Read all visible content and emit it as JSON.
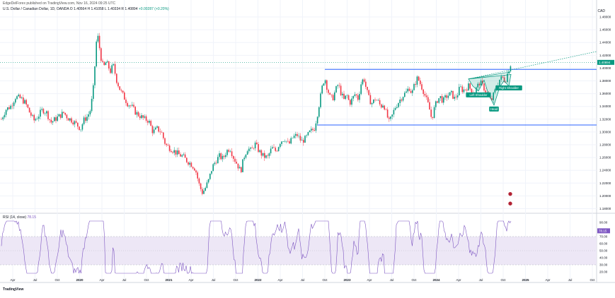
{
  "header": {
    "publisher": "EdgeDelForex published on TradingView.com, Nov 16, 2024 09:25 UTC",
    "symbol": "U.S. Dollar / Canadian Dollar, 1D, OANDA",
    "ohlc": "O 1.40564  H 1.41058  L 1.40334  R 1.40894",
    "change": "+0.00287 (+0.20%)",
    "currency": "CAD"
  },
  "rsi": {
    "label": "RSI (14, close)",
    "value": "78.15"
  },
  "brand": "TradingView",
  "colors": {
    "up": "#089981",
    "down": "#f23645",
    "level": "#2962ff",
    "rsi_line": "#7e57c2",
    "rsi_band": "#ede7f6",
    "trend": "#089981",
    "price_tag": "#089981"
  },
  "chart_data": [
    {
      "type": "candlestick",
      "title": "U.S. Dollar / Canadian Dollar, 1D, OANDA",
      "x_ticks": [
        "Apr",
        "Jul",
        "Oct",
        "2020",
        "Apr",
        "Jul",
        "Oct",
        "2021",
        "Apr",
        "Jul",
        "Oct",
        "2022",
        "Apr",
        "Jul",
        "Oct",
        "2023",
        "Apr",
        "Jul",
        "Oct",
        "2024",
        "Apr",
        "Jul",
        "Oct",
        "2025",
        "Apr",
        "Jul",
        "Oct"
      ],
      "y_ticks": [
        "1.48000",
        "1.46000",
        "1.44000",
        "1.42000",
        "1.40000",
        "1.38000",
        "1.36000",
        "1.34000",
        "1.32000",
        "1.30000",
        "1.28000",
        "1.26000",
        "1.24000",
        "1.22000",
        "1.20000",
        "1.18000"
      ],
      "ylim": [
        1.175,
        1.49
      ],
      "current_price": "1.40894",
      "price_path": [
        [
          0,
          1.315
        ],
        [
          8,
          1.335
        ],
        [
          15,
          1.34
        ],
        [
          22,
          1.355
        ],
        [
          30,
          1.352
        ],
        [
          36,
          1.345
        ],
        [
          42,
          1.33
        ],
        [
          48,
          1.318
        ],
        [
          54,
          1.325
        ],
        [
          60,
          1.335
        ],
        [
          66,
          1.33
        ],
        [
          72,
          1.315
        ],
        [
          78,
          1.32
        ],
        [
          84,
          1.325
        ],
        [
          90,
          1.33
        ],
        [
          96,
          1.322
        ],
        [
          102,
          1.318
        ],
        [
          108,
          1.312
        ],
        [
          114,
          1.305
        ],
        [
          118,
          1.318
        ],
        [
          124,
          1.325
        ],
        [
          128,
          1.335
        ],
        [
          132,
          1.37
        ],
        [
          135,
          1.42
        ],
        [
          137,
          1.455
        ],
        [
          139,
          1.445
        ],
        [
          142,
          1.42
        ],
        [
          146,
          1.4
        ],
        [
          150,
          1.41
        ],
        [
          156,
          1.395
        ],
        [
          160,
          1.405
        ],
        [
          165,
          1.38
        ],
        [
          170,
          1.365
        ],
        [
          175,
          1.355
        ],
        [
          180,
          1.345
        ],
        [
          186,
          1.34
        ],
        [
          192,
          1.33
        ],
        [
          198,
          1.325
        ],
        [
          204,
          1.32
        ],
        [
          210,
          1.318
        ],
        [
          216,
          1.3
        ],
        [
          222,
          1.305
        ],
        [
          228,
          1.3
        ],
        [
          234,
          1.28
        ],
        [
          240,
          1.275
        ],
        [
          246,
          1.27
        ],
        [
          252,
          1.265
        ],
        [
          258,
          1.262
        ],
        [
          264,
          1.255
        ],
        [
          270,
          1.25
        ],
        [
          276,
          1.242
        ],
        [
          282,
          1.215
        ],
        [
          286,
          1.205
        ],
        [
          290,
          1.212
        ],
        [
          295,
          1.225
        ],
        [
          300,
          1.245
        ],
        [
          305,
          1.255
        ],
        [
          310,
          1.262
        ],
        [
          315,
          1.258
        ],
        [
          320,
          1.27
        ],
        [
          325,
          1.275
        ],
        [
          330,
          1.26
        ],
        [
          335,
          1.25
        ],
        [
          340,
          1.238
        ],
        [
          345,
          1.262
        ],
        [
          350,
          1.275
        ],
        [
          355,
          1.27
        ],
        [
          360,
          1.282
        ],
        [
          366,
          1.27
        ],
        [
          372,
          1.262
        ],
        [
          378,
          1.26
        ],
        [
          384,
          1.275
        ],
        [
          390,
          1.27
        ],
        [
          396,
          1.285
        ],
        [
          402,
          1.29
        ],
        [
          408,
          1.28
        ],
        [
          414,
          1.292
        ],
        [
          420,
          1.295
        ],
        [
          426,
          1.285
        ],
        [
          432,
          1.29
        ],
        [
          438,
          1.3
        ],
        [
          444,
          1.305
        ],
        [
          448,
          1.325
        ],
        [
          452,
          1.35
        ],
        [
          456,
          1.375
        ],
        [
          459,
          1.385
        ],
        [
          462,
          1.37
        ],
        [
          466,
          1.355
        ],
        [
          470,
          1.352
        ],
        [
          474,
          1.365
        ],
        [
          478,
          1.375
        ],
        [
          482,
          1.36
        ],
        [
          486,
          1.35
        ],
        [
          490,
          1.358
        ],
        [
          494,
          1.345
        ],
        [
          498,
          1.352
        ],
        [
          502,
          1.36
        ],
        [
          506,
          1.352
        ],
        [
          510,
          1.375
        ],
        [
          514,
          1.385
        ],
        [
          518,
          1.365
        ],
        [
          522,
          1.35
        ],
        [
          526,
          1.345
        ],
        [
          530,
          1.352
        ],
        [
          534,
          1.348
        ],
        [
          538,
          1.34
        ],
        [
          542,
          1.345
        ],
        [
          546,
          1.328
        ],
        [
          550,
          1.315
        ],
        [
          554,
          1.325
        ],
        [
          558,
          1.338
        ],
        [
          562,
          1.345
        ],
        [
          566,
          1.352
        ],
        [
          570,
          1.358
        ],
        [
          574,
          1.362
        ],
        [
          578,
          1.37
        ],
        [
          582,
          1.36
        ],
        [
          586,
          1.375
        ],
        [
          590,
          1.385
        ],
        [
          594,
          1.375
        ],
        [
          598,
          1.365
        ],
        [
          602,
          1.352
        ],
        [
          606,
          1.34
        ],
        [
          610,
          1.32
        ],
        [
          614,
          1.338
        ],
        [
          618,
          1.35
        ],
        [
          622,
          1.355
        ],
        [
          626,
          1.348
        ],
        [
          630,
          1.355
        ],
        [
          634,
          1.358
        ],
        [
          638,
          1.36
        ],
        [
          642,
          1.352
        ],
        [
          646,
          1.358
        ],
        [
          650,
          1.37
        ],
        [
          654,
          1.365
        ],
        [
          658,
          1.368
        ],
        [
          662,
          1.372
        ],
        [
          666,
          1.365
        ],
        [
          670,
          1.362
        ],
        [
          674,
          1.37
        ],
        [
          678,
          1.378
        ],
        [
          682,
          1.372
        ],
        [
          686,
          1.365
        ],
        [
          690,
          1.355
        ],
        [
          694,
          1.348
        ],
        [
          698,
          1.36
        ],
        [
          702,
          1.372
        ],
        [
          706,
          1.382
        ],
        [
          710,
          1.385
        ],
        [
          714,
          1.38
        ],
        [
          718,
          1.395
        ],
        [
          722,
          1.408
        ]
      ],
      "levels": [
        {
          "name": "resistance",
          "y": 1.398,
          "x_start": 459
        },
        {
          "name": "support",
          "y": 1.311,
          "x_start": 448
        }
      ],
      "pattern_labels": [
        {
          "text": "Left Shoulder",
          "x": 676,
          "y": 1.358
        },
        {
          "text": "Head",
          "x": 698,
          "y": 1.336
        },
        {
          "text": "Right Shoulder",
          "x": 719,
          "y": 1.369
        }
      ]
    },
    {
      "type": "line",
      "title": "RSI (14, close)",
      "y_ticks": [
        "90.00",
        "80.00",
        "70.00",
        "60.00",
        "50.00",
        "40.00",
        "30.00",
        "20.00"
      ],
      "ylim": [
        15,
        95
      ],
      "band": [
        30,
        70
      ],
      "value": 78.15
    }
  ]
}
